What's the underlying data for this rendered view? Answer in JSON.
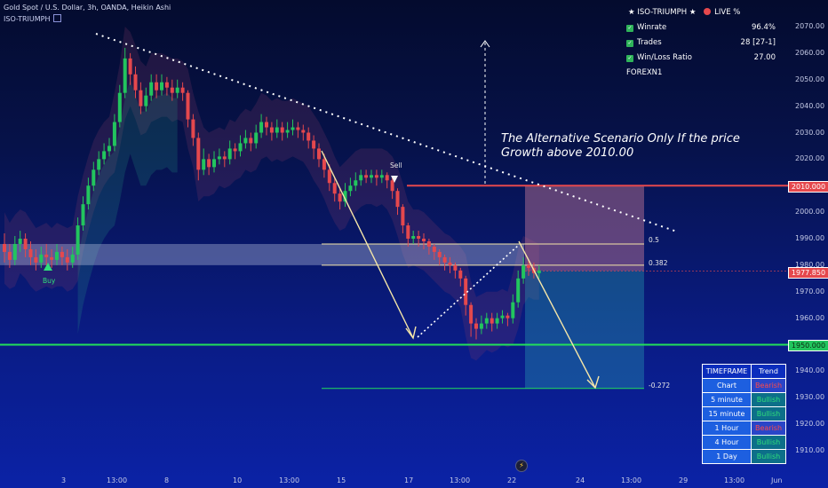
{
  "header": {
    "title": "Gold Spot / U.S. Dollar, 3h, OANDA, Heikin Ashi",
    "indicator": "ISO-TRIUMPH"
  },
  "stats_panel": {
    "title": "ISO-TRIUMPH",
    "live": "LIVE %",
    "rows": [
      {
        "label": "Winrate",
        "value": "96.4%"
      },
      {
        "label": "Trades",
        "value": "28 [27-1]"
      },
      {
        "label": "Win/Loss Ratio",
        "value": "27.00"
      }
    ],
    "footer": "FOREXN1"
  },
  "annotation": "The Alternative Scenario Only If the price Growth above 2010.00",
  "markers": {
    "buy": "Buy",
    "sell": "Sell"
  },
  "fib_labels": [
    "0.5",
    "0.382",
    "-0.272"
  ],
  "price_badges": [
    {
      "label": "2010.000",
      "price": 2010,
      "color": "#e5484d"
    },
    {
      "label": "1977.850",
      "price": 1977.85,
      "color": "#e5484d"
    },
    {
      "label": "1950.000",
      "price": 1950,
      "color": "#22c55e"
    }
  ],
  "timeframe_table": {
    "headers": [
      "TIMEFRAME",
      "Trend"
    ],
    "rows": [
      {
        "tf": "Chart",
        "trend": "Bearish"
      },
      {
        "tf": "5 minute",
        "trend": "Bullish"
      },
      {
        "tf": "15 minute",
        "trend": "Bullish"
      },
      {
        "tf": "1 Hour",
        "trend": "Bearish"
      },
      {
        "tf": "4 Hour",
        "trend": "Bullish"
      },
      {
        "tf": "1 Day",
        "trend": "Bullish"
      }
    ]
  },
  "icons": {
    "check": "check-icon",
    "star": "star-icon",
    "live_dot": "live-dot-icon",
    "bolt": "lightning-icon"
  },
  "colors": {
    "bull": "#22c55e",
    "bear": "#e5484d",
    "accent": "#f5e6a8"
  },
  "chart_data": {
    "type": "candlestick",
    "title": "Gold Spot / U.S. Dollar, 3h, OANDA, Heikin Ashi",
    "ylim": [
      1903,
      2078
    ],
    "y_ticks": [
      2070,
      2060,
      2050,
      2040,
      2030,
      2020,
      2010,
      2000,
      1990,
      1980,
      1970,
      1960,
      1950,
      1940,
      1930,
      1920,
      1910
    ],
    "x_tick_labels": [
      "3",
      "13:00",
      "8",
      "10",
      "13:00",
      "15",
      "17",
      "13:00",
      "22",
      "24",
      "13:00",
      "29",
      "13:00",
      "Jun"
    ],
    "levels": {
      "resistance": 2010.0,
      "current": 1977.85,
      "support": 1950.0,
      "fib_0_5": 1988.0,
      "fib_0_382": 1980.0,
      "fib_-0_272": 1933.5
    },
    "candles": [
      {
        "o": 1988,
        "c": 1985,
        "h": 1992,
        "l": 1981
      },
      {
        "o": 1985,
        "c": 1982,
        "h": 1988,
        "l": 1979
      },
      {
        "o": 1982,
        "c": 1988,
        "h": 1991,
        "l": 1980
      },
      {
        "o": 1988,
        "c": 1990,
        "h": 1993,
        "l": 1985
      },
      {
        "o": 1990,
        "c": 1986,
        "h": 1992,
        "l": 1983
      },
      {
        "o": 1986,
        "c": 1983,
        "h": 1989,
        "l": 1980
      },
      {
        "o": 1983,
        "c": 1981,
        "h": 1986,
        "l": 1978
      },
      {
        "o": 1981,
        "c": 1984,
        "h": 1987,
        "l": 1979
      },
      {
        "o": 1984,
        "c": 1983,
        "h": 1988,
        "l": 1980
      },
      {
        "o": 1983,
        "c": 1982,
        "h": 1986,
        "l": 1979
      },
      {
        "o": 1982,
        "c": 1985,
        "h": 1988,
        "l": 1980
      },
      {
        "o": 1985,
        "c": 1983,
        "h": 1987,
        "l": 1980
      },
      {
        "o": 1983,
        "c": 1981,
        "h": 1986,
        "l": 1978
      },
      {
        "o": 1981,
        "c": 1984,
        "h": 1987,
        "l": 1979
      },
      {
        "o": 1984,
        "c": 1995,
        "h": 1998,
        "l": 1982
      },
      {
        "o": 1995,
        "c": 2003,
        "h": 2006,
        "l": 1993
      },
      {
        "o": 2003,
        "c": 2010,
        "h": 2013,
        "l": 2001
      },
      {
        "o": 2010,
        "c": 2016,
        "h": 2019,
        "l": 2008
      },
      {
        "o": 2016,
        "c": 2020,
        "h": 2023,
        "l": 2014
      },
      {
        "o": 2020,
        "c": 2023,
        "h": 2026,
        "l": 2018
      },
      {
        "o": 2023,
        "c": 2025,
        "h": 2028,
        "l": 2021
      },
      {
        "o": 2025,
        "c": 2034,
        "h": 2037,
        "l": 2023
      },
      {
        "o": 2034,
        "c": 2045,
        "h": 2048,
        "l": 2032
      },
      {
        "o": 2045,
        "c": 2058,
        "h": 2062,
        "l": 2043
      },
      {
        "o": 2058,
        "c": 2052,
        "h": 2060,
        "l": 2048
      },
      {
        "o": 2052,
        "c": 2046,
        "h": 2055,
        "l": 2043
      },
      {
        "o": 2046,
        "c": 2040,
        "h": 2049,
        "l": 2037
      },
      {
        "o": 2040,
        "c": 2044,
        "h": 2047,
        "l": 2038
      },
      {
        "o": 2044,
        "c": 2049,
        "h": 2052,
        "l": 2042
      },
      {
        "o": 2049,
        "c": 2046,
        "h": 2052,
        "l": 2043
      },
      {
        "o": 2046,
        "c": 2049,
        "h": 2052,
        "l": 2044
      },
      {
        "o": 2049,
        "c": 2047,
        "h": 2051,
        "l": 2044
      },
      {
        "o": 2047,
        "c": 2045,
        "h": 2050,
        "l": 2042
      },
      {
        "o": 2045,
        "c": 2047,
        "h": 2050,
        "l": 2043
      },
      {
        "o": 2047,
        "c": 2045,
        "h": 2049,
        "l": 2042
      },
      {
        "o": 2045,
        "c": 2035,
        "h": 2046,
        "l": 2032
      },
      {
        "o": 2035,
        "c": 2028,
        "h": 2037,
        "l": 2025
      },
      {
        "o": 2028,
        "c": 2016,
        "h": 2030,
        "l": 2012
      },
      {
        "o": 2016,
        "c": 2020,
        "h": 2024,
        "l": 2014
      },
      {
        "o": 2020,
        "c": 2017,
        "h": 2022,
        "l": 2014
      },
      {
        "o": 2017,
        "c": 2020,
        "h": 2023,
        "l": 2015
      },
      {
        "o": 2020,
        "c": 2021,
        "h": 2024,
        "l": 2018
      },
      {
        "o": 2021,
        "c": 2020,
        "h": 2023,
        "l": 2017
      },
      {
        "o": 2020,
        "c": 2024,
        "h": 2027,
        "l": 2018
      },
      {
        "o": 2024,
        "c": 2023,
        "h": 2026,
        "l": 2020
      },
      {
        "o": 2023,
        "c": 2026,
        "h": 2029,
        "l": 2021
      },
      {
        "o": 2026,
        "c": 2028,
        "h": 2031,
        "l": 2024
      },
      {
        "o": 2028,
        "c": 2026,
        "h": 2030,
        "l": 2023
      },
      {
        "o": 2026,
        "c": 2030,
        "h": 2033,
        "l": 2024
      },
      {
        "o": 2030,
        "c": 2034,
        "h": 2037,
        "l": 2028
      },
      {
        "o": 2034,
        "c": 2032,
        "h": 2036,
        "l": 2029
      },
      {
        "o": 2032,
        "c": 2030,
        "h": 2034,
        "l": 2027
      },
      {
        "o": 2030,
        "c": 2032,
        "h": 2035,
        "l": 2028
      },
      {
        "o": 2032,
        "c": 2030,
        "h": 2034,
        "l": 2027
      },
      {
        "o": 2030,
        "c": 2031,
        "h": 2034,
        "l": 2028
      },
      {
        "o": 2031,
        "c": 2032,
        "h": 2035,
        "l": 2029
      },
      {
        "o": 2032,
        "c": 2031,
        "h": 2034,
        "l": 2028
      },
      {
        "o": 2031,
        "c": 2030,
        "h": 2033,
        "l": 2027
      },
      {
        "o": 2030,
        "c": 2027,
        "h": 2032,
        "l": 2024
      },
      {
        "o": 2027,
        "c": 2024,
        "h": 2029,
        "l": 2020
      },
      {
        "o": 2024,
        "c": 2020,
        "h": 2026,
        "l": 2017
      },
      {
        "o": 2020,
        "c": 2016,
        "h": 2022,
        "l": 2013
      },
      {
        "o": 2016,
        "c": 2011,
        "h": 2018,
        "l": 2008
      },
      {
        "o": 2011,
        "c": 2007,
        "h": 2013,
        "l": 2004
      },
      {
        "o": 2007,
        "c": 2004,
        "h": 2009,
        "l": 2001
      },
      {
        "o": 2004,
        "c": 2008,
        "h": 2011,
        "l": 2002
      },
      {
        "o": 2008,
        "c": 2010,
        "h": 2013,
        "l": 2006
      },
      {
        "o": 2010,
        "c": 2012,
        "h": 2015,
        "l": 2008
      },
      {
        "o": 2012,
        "c": 2014,
        "h": 2016,
        "l": 2010
      },
      {
        "o": 2014,
        "c": 2013,
        "h": 2016,
        "l": 2011
      },
      {
        "o": 2013,
        "c": 2014,
        "h": 2016,
        "l": 2011
      },
      {
        "o": 2014,
        "c": 2013,
        "h": 2016,
        "l": 2010
      },
      {
        "o": 2013,
        "c": 2014,
        "h": 2016,
        "l": 2011
      },
      {
        "o": 2014,
        "c": 2012,
        "h": 2015,
        "l": 2009
      },
      {
        "o": 2012,
        "c": 2008,
        "h": 2013,
        "l": 2005
      },
      {
        "o": 2008,
        "c": 2002,
        "h": 2009,
        "l": 1999
      },
      {
        "o": 2002,
        "c": 1995,
        "h": 2003,
        "l": 1992
      },
      {
        "o": 1995,
        "c": 1990,
        "h": 1996,
        "l": 1987
      },
      {
        "o": 1990,
        "c": 1991,
        "h": 1993,
        "l": 1988
      },
      {
        "o": 1991,
        "c": 1990,
        "h": 1993,
        "l": 1987
      },
      {
        "o": 1990,
        "c": 1989,
        "h": 1992,
        "l": 1986
      },
      {
        "o": 1989,
        "c": 1987,
        "h": 1990,
        "l": 1984
      },
      {
        "o": 1987,
        "c": 1985,
        "h": 1988,
        "l": 1982
      },
      {
        "o": 1985,
        "c": 1983,
        "h": 1986,
        "l": 1980
      },
      {
        "o": 1983,
        "c": 1981,
        "h": 1984,
        "l": 1978
      },
      {
        "o": 1981,
        "c": 1980,
        "h": 1983,
        "l": 1977
      },
      {
        "o": 1980,
        "c": 1978,
        "h": 1981,
        "l": 1975
      },
      {
        "o": 1978,
        "c": 1975,
        "h": 1979,
        "l": 1972
      },
      {
        "o": 1975,
        "c": 1965,
        "h": 1976,
        "l": 1961
      },
      {
        "o": 1965,
        "c": 1958,
        "h": 1966,
        "l": 1953
      },
      {
        "o": 1958,
        "c": 1956,
        "h": 1960,
        "l": 1952
      },
      {
        "o": 1956,
        "c": 1958,
        "h": 1961,
        "l": 1954
      },
      {
        "o": 1958,
        "c": 1960,
        "h": 1962,
        "l": 1956
      },
      {
        "o": 1960,
        "c": 1958,
        "h": 1962,
        "l": 1955
      },
      {
        "o": 1958,
        "c": 1960,
        "h": 1962,
        "l": 1956
      },
      {
        "o": 1960,
        "c": 1961,
        "h": 1963,
        "l": 1958
      },
      {
        "o": 1961,
        "c": 1960,
        "h": 1962,
        "l": 1957
      },
      {
        "o": 1960,
        "c": 1966,
        "h": 1969,
        "l": 1958
      },
      {
        "o": 1966,
        "c": 1975,
        "h": 1978,
        "l": 1964
      },
      {
        "o": 1975,
        "c": 1980,
        "h": 1983,
        "l": 1973
      },
      {
        "o": 1980,
        "c": 1979,
        "h": 1982,
        "l": 1976
      },
      {
        "o": 1979,
        "c": 1977,
        "h": 1981,
        "l": 1975
      },
      {
        "o": 1977,
        "c": 1978,
        "h": 1980,
        "l": 1975
      }
    ]
  }
}
